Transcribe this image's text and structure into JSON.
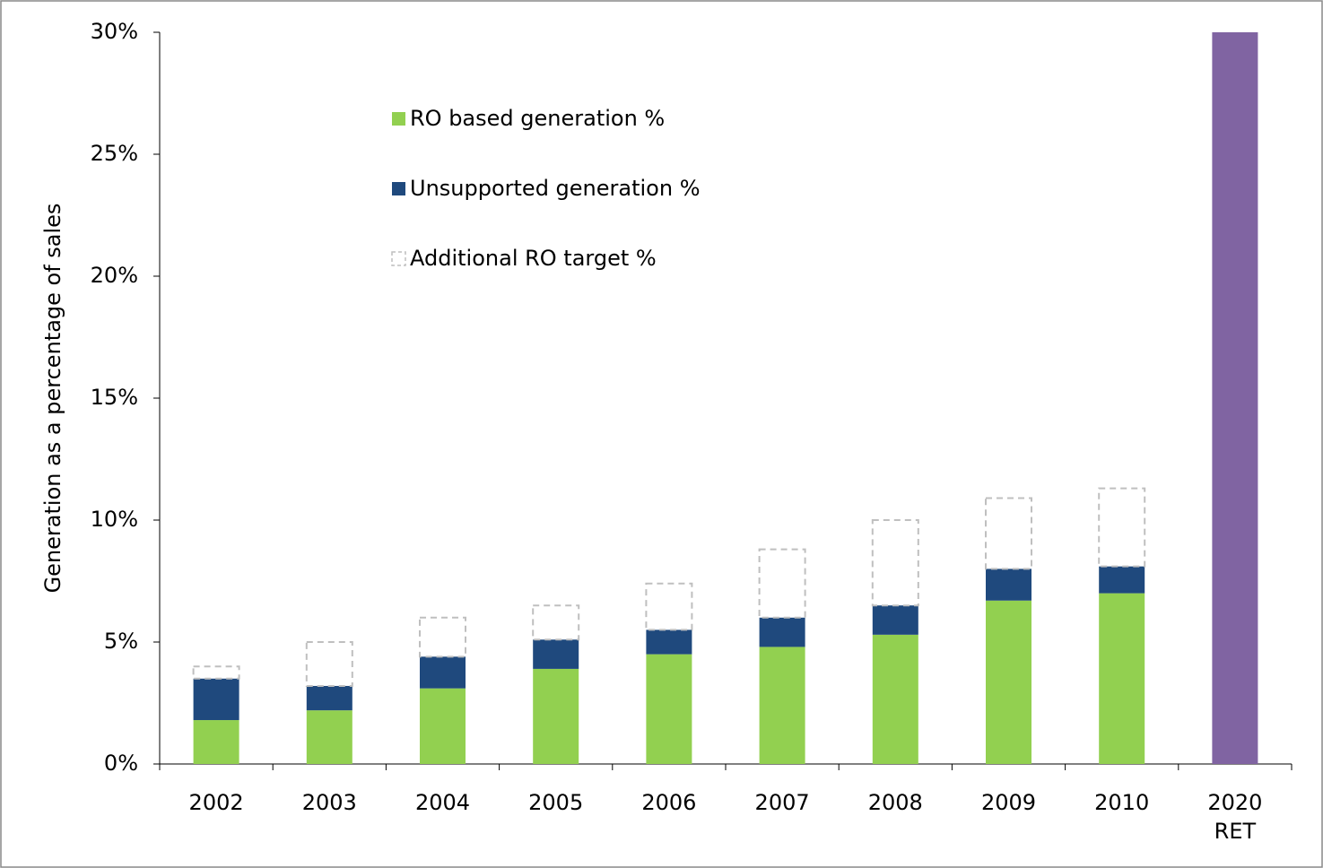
{
  "chart_data": {
    "type": "stacked_bar",
    "y_label": "Generation as a percentage of sales",
    "categories": [
      "2002",
      "2003",
      "2004",
      "2005",
      "2006",
      "2007",
      "2008",
      "2009",
      "2010",
      "2020 RET"
    ],
    "series": [
      {
        "name": "RO based generation %",
        "color": "#92d050",
        "values": [
          1.8,
          2.2,
          3.1,
          3.9,
          4.5,
          4.8,
          5.3,
          6.7,
          7.0,
          null
        ]
      },
      {
        "name": "Unsupported generation %",
        "color": "#1f497d",
        "values": [
          1.7,
          1.0,
          1.3,
          1.2,
          1.0,
          1.2,
          1.2,
          1.3,
          1.1,
          null
        ]
      },
      {
        "name": "Additional RO target %",
        "color": "#bfbfbf",
        "style": "dashed-outline",
        "values": [
          0.5,
          1.8,
          1.6,
          1.4,
          1.9,
          2.8,
          3.5,
          2.9,
          3.2,
          null
        ]
      },
      {
        "color": "#8064a2",
        "values": [
          null,
          null,
          null,
          null,
          null,
          null,
          null,
          null,
          null,
          30
        ]
      }
    ],
    "ylim": [
      0,
      30
    ],
    "yticks": [
      {
        "value": 0,
        "label": "0%"
      },
      {
        "value": 5,
        "label": "5%"
      },
      {
        "value": 10,
        "label": "10%"
      },
      {
        "value": 15,
        "label": "15%"
      },
      {
        "value": 20,
        "label": "20%"
      },
      {
        "value": 25,
        "label": "25%"
      },
      {
        "value": 30,
        "label": "30%"
      }
    ]
  }
}
